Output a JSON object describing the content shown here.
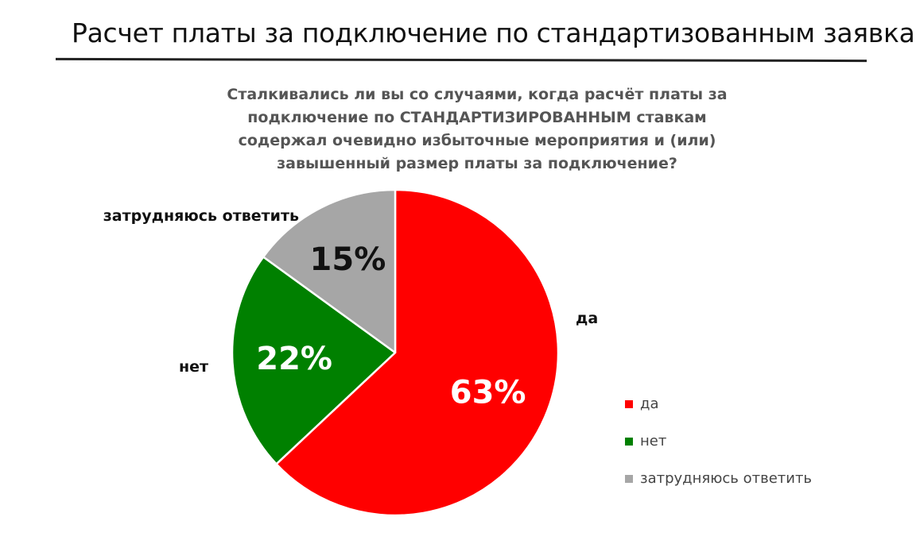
{
  "page": {
    "title": "Расчет платы за подключение по стандартизованным заявкам"
  },
  "chart_data": {
    "type": "pie",
    "title_lines": [
      "Сталкивались  ли вы со случаями, когда расчёт платы за",
      "подключение по СТАНДАРТИЗИРОВАННЫМ  ставкам",
      "содержал очевидно избыточные мероприятия и (или)",
      "завышенный размер платы за подключение?"
    ],
    "start_angle_deg": 0,
    "direction": "clockwise",
    "slices": [
      {
        "name": "да",
        "value": 63,
        "label": "63%",
        "color": "#ff0000",
        "label_color": "#ffffff"
      },
      {
        "name": "нет",
        "value": 22,
        "label": "22%",
        "color": "#008000",
        "label_color": "#ffffff"
      },
      {
        "name": "затрудняюсь ответить",
        "value": 15,
        "label": "15%",
        "color": "#a6a6a6",
        "label_color": "#111111"
      }
    ],
    "category_labels": [
      "да",
      "нет",
      "затрудняюсь ответить"
    ],
    "legend": {
      "position": "right-bottom",
      "entries": [
        "да",
        "нет",
        "затрудняюсь ответить"
      ]
    }
  }
}
